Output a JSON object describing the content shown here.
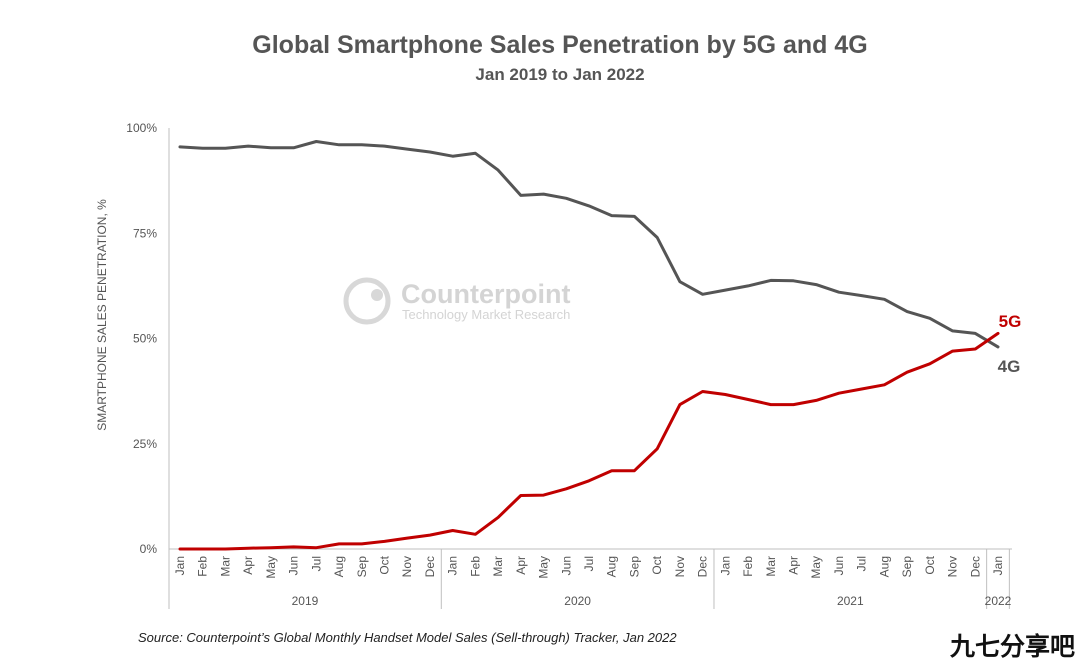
{
  "chart_data": {
    "type": "line",
    "title": "Global Smartphone Sales Penetration by 5G and 4G",
    "subtitle": "Jan 2019 to Jan 2022",
    "ylabel": "SMARTPHONE SALES PENETRATION, %",
    "xlabel": "",
    "ylim": [
      0,
      100
    ],
    "yticks": [
      "0%",
      "25%",
      "50%",
      "75%",
      "100%"
    ],
    "ytick_values": [
      0,
      25,
      50,
      75,
      100
    ],
    "categories": [
      "Jan",
      "Feb",
      "Mar",
      "Apr",
      "May",
      "Jun",
      "Jul",
      "Aug",
      "Sep",
      "Oct",
      "Nov",
      "Dec",
      "Jan",
      "Feb",
      "Mar",
      "Apr",
      "May",
      "Jun",
      "Jul",
      "Aug",
      "Sep",
      "Oct",
      "Nov",
      "Dec",
      "Jan",
      "Feb",
      "Mar",
      "Apr",
      "May",
      "Jun",
      "Jul",
      "Aug",
      "Sep",
      "Oct",
      "Nov",
      "Dec",
      "Jan"
    ],
    "year_groups": [
      {
        "label": "2019",
        "start": 0,
        "end": 11
      },
      {
        "label": "2020",
        "start": 12,
        "end": 23
      },
      {
        "label": "2021",
        "start": 24,
        "end": 35
      },
      {
        "label": "2022",
        "start": 36,
        "end": 36
      }
    ],
    "series": [
      {
        "name": "4G",
        "color": "#555555",
        "values": [
          95.5,
          95.2,
          95.2,
          95.7,
          95.3,
          95.3,
          96.8,
          96.0,
          96.0,
          95.7,
          95.0,
          94.3,
          93.3,
          94.0,
          90.0,
          84.0,
          84.3,
          83.3,
          81.5,
          79.2,
          79.0,
          74.0,
          63.5,
          60.5,
          61.5,
          62.5,
          63.8,
          63.7,
          62.8,
          61.0,
          60.2,
          59.3,
          56.4,
          54.8,
          51.8,
          51.2,
          48.0
        ]
      },
      {
        "name": "5G",
        "color": "#c00000",
        "values": [
          0.0,
          0.0,
          0.0,
          0.2,
          0.3,
          0.5,
          0.3,
          1.2,
          1.2,
          1.8,
          2.6,
          3.3,
          4.4,
          3.5,
          7.5,
          12.7,
          12.8,
          14.3,
          16.2,
          18.6,
          18.6,
          23.8,
          34.3,
          37.4,
          36.7,
          35.5,
          34.3,
          34.3,
          35.3,
          37.0,
          38.0,
          39.0,
          42.0,
          44.0,
          47.0,
          47.5,
          51.2
        ]
      }
    ],
    "legend_labels": [
      "5G",
      "4G"
    ]
  },
  "colors": {
    "g4": "#555555",
    "g5": "#c00000"
  },
  "watermark": {
    "name": "Counterpoint",
    "tagline": "Technology Market Research"
  },
  "source_note": "Source: Counterpoint’s Global Monthly Handset Model Sales (Sell-through) Tracker, Jan 2022",
  "corner_text": "九七分享吧"
}
